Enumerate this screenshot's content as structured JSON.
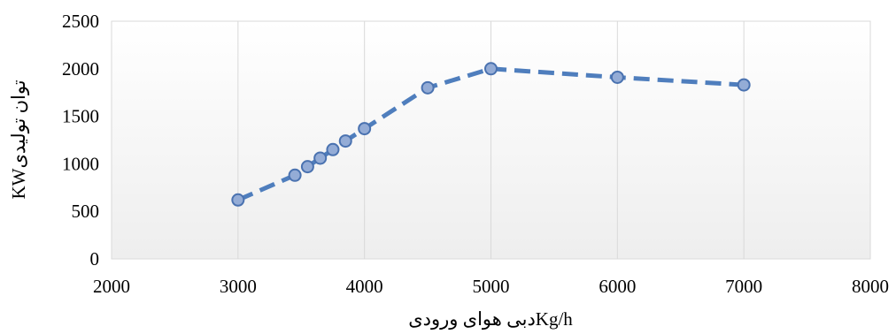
{
  "chart_data": {
    "type": "line",
    "title": "",
    "xlabel": "دبی هوای ورودیKg/h",
    "ylabel": "KWتوان تولیدی",
    "xlim": [
      2000,
      8000
    ],
    "ylim": [
      0,
      2500
    ],
    "x_ticks": [
      2000,
      3000,
      4000,
      5000,
      6000,
      7000,
      8000
    ],
    "y_ticks": [
      0,
      500,
      1000,
      1500,
      2000,
      2500
    ],
    "grid": "vertical",
    "legend": "none",
    "series": [
      {
        "x": [
          3000,
          3450,
          3550,
          3650,
          3750,
          3850,
          4000,
          4500,
          5000,
          6000,
          7000
        ],
        "y": [
          620,
          880,
          970,
          1060,
          1150,
          1240,
          1370,
          1800,
          2000,
          1910,
          1830
        ],
        "line_color": "#4f7ebd",
        "line_style": "dashed",
        "marker": "circle",
        "marker_fill": "#94acd6",
        "marker_edge": "#4a72b0"
      }
    ],
    "plot_background": [
      "#ffffff",
      "#eeeeee"
    ]
  }
}
